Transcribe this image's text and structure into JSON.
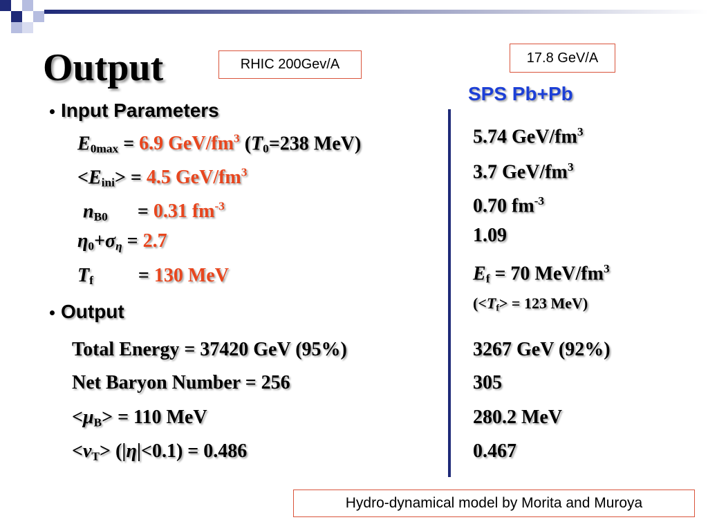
{
  "title": "Output",
  "labels": {
    "rhic": "RHIC 200Gev/A",
    "sps_energy": "17.8 GeV/A",
    "sps": "SPS Pb+Pb"
  },
  "input": {
    "heading": "Input Parameters",
    "rows": [
      {
        "rhic": [
          "E",
          "0max",
          " = ",
          "6.9 GeV/fm",
          "3",
          " (",
          "T",
          "0",
          "=238 MeV)"
        ],
        "sps": [
          "5.74 GeV/fm",
          "3"
        ]
      },
      {
        "rhic": [
          "<",
          "E",
          "ini",
          "> = ",
          "4.5 GeV/fm",
          "3"
        ],
        "sps": [
          "3.7 GeV/fm",
          "3"
        ]
      },
      {
        "rhic": [
          "n",
          "B0",
          " = ",
          "0.31 fm",
          "-3"
        ],
        "sps": [
          "0.70 fm",
          "-3"
        ]
      },
      {
        "rhic": [
          "η",
          "0",
          "+",
          "σ",
          "η",
          " = ",
          "2.7"
        ],
        "sps": [
          "1.09"
        ]
      },
      {
        "rhic": [
          "T",
          "f",
          " = ",
          "130 MeV"
        ],
        "sps": [
          "E",
          "f",
          " = 70 MeV/fm",
          "3"
        ],
        "sps_note": [
          "(<",
          "T",
          "f",
          "> = 123 MeV)"
        ]
      }
    ]
  },
  "output": {
    "heading": "Output",
    "rows": [
      {
        "rhic": [
          "Total Energy = 37420 GeV (95%)"
        ],
        "sps": [
          "3267 GeV (92%)"
        ]
      },
      {
        "rhic": [
          "Net Baryon Number = 256"
        ],
        "sps": [
          "305"
        ]
      },
      {
        "rhic": [
          "<",
          "μ",
          "B",
          "> = 110 MeV"
        ],
        "sps": [
          "280.2 MeV"
        ]
      },
      {
        "rhic": [
          "<",
          "v",
          "T",
          "> (|",
          "η",
          "|<0.1) = 0.486"
        ],
        "sps": [
          "0.467"
        ]
      }
    ]
  },
  "footer": "Hydro-dynamical model by Morita and Muroya"
}
